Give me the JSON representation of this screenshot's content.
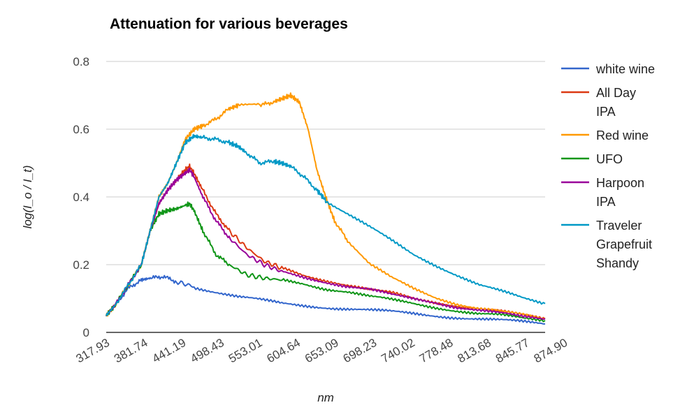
{
  "chart_data": {
    "type": "line",
    "title": "Attenuation for various beverages",
    "xlabel": "nm",
    "ylabel": "log(I_o / I_t)",
    "ylim": [
      0,
      0.8
    ],
    "yticks": [
      "0",
      "0.2",
      "0.4",
      "0.6",
      "0.8"
    ],
    "xticks": [
      "317.93",
      "381.74",
      "441.19",
      "498.43",
      "553.01",
      "604.64",
      "653.09",
      "698.23",
      "740.02",
      "778.48",
      "813.68",
      "845.77",
      "874.90"
    ],
    "grid": true,
    "legend_position": "right",
    "series": [
      {
        "name": "white wine",
        "color": "#3366cc",
        "points": [
          [
            0,
            0.05
          ],
          [
            0.02,
            0.08
          ],
          [
            0.05,
            0.13
          ],
          [
            0.08,
            0.155
          ],
          [
            0.1,
            0.16
          ],
          [
            0.13,
            0.165
          ],
          [
            0.16,
            0.15
          ],
          [
            0.2,
            0.135
          ],
          [
            0.25,
            0.12
          ],
          [
            0.3,
            0.105
          ],
          [
            0.35,
            0.095
          ],
          [
            0.4,
            0.085
          ],
          [
            0.45,
            0.08
          ],
          [
            0.5,
            0.075
          ],
          [
            0.55,
            0.07
          ],
          [
            0.6,
            0.065
          ],
          [
            0.65,
            0.06
          ],
          [
            0.7,
            0.055
          ],
          [
            0.75,
            0.05
          ],
          [
            0.8,
            0.045
          ],
          [
            0.85,
            0.04
          ],
          [
            0.9,
            0.035
          ],
          [
            0.95,
            0.03
          ],
          [
            1,
            0.025
          ]
        ]
      },
      {
        "name": "All Day IPA",
        "color": "#dc3912",
        "points": [
          [
            0,
            0.05
          ],
          [
            0.02,
            0.08
          ],
          [
            0.05,
            0.14
          ],
          [
            0.08,
            0.2
          ],
          [
            0.1,
            0.3
          ],
          [
            0.12,
            0.38
          ],
          [
            0.14,
            0.42
          ],
          [
            0.16,
            0.45
          ],
          [
            0.18,
            0.48
          ],
          [
            0.19,
            0.49
          ],
          [
            0.2,
            0.47
          ],
          [
            0.22,
            0.42
          ],
          [
            0.25,
            0.35
          ],
          [
            0.28,
            0.3
          ],
          [
            0.32,
            0.25
          ],
          [
            0.36,
            0.21
          ],
          [
            0.4,
            0.19
          ],
          [
            0.45,
            0.17
          ],
          [
            0.5,
            0.155
          ],
          [
            0.55,
            0.14
          ],
          [
            0.6,
            0.125
          ],
          [
            0.65,
            0.115
          ],
          [
            0.7,
            0.1
          ],
          [
            0.75,
            0.09
          ],
          [
            0.8,
            0.08
          ],
          [
            0.85,
            0.07
          ],
          [
            0.9,
            0.06
          ],
          [
            0.95,
            0.05
          ],
          [
            1,
            0.04
          ]
        ]
      },
      {
        "name": "Red wine",
        "color": "#ff9900",
        "points": [
          [
            0,
            0.05
          ],
          [
            0.02,
            0.08
          ],
          [
            0.05,
            0.14
          ],
          [
            0.08,
            0.2
          ],
          [
            0.1,
            0.3
          ],
          [
            0.12,
            0.4
          ],
          [
            0.14,
            0.44
          ],
          [
            0.16,
            0.5
          ],
          [
            0.18,
            0.57
          ],
          [
            0.2,
            0.6
          ],
          [
            0.22,
            0.61
          ],
          [
            0.25,
            0.63
          ],
          [
            0.28,
            0.66
          ],
          [
            0.3,
            0.67
          ],
          [
            0.35,
            0.67
          ],
          [
            0.38,
            0.68
          ],
          [
            0.4,
            0.69
          ],
          [
            0.42,
            0.7
          ],
          [
            0.44,
            0.68
          ],
          [
            0.46,
            0.6
          ],
          [
            0.48,
            0.48
          ],
          [
            0.5,
            0.4
          ],
          [
            0.52,
            0.33
          ],
          [
            0.55,
            0.27
          ],
          [
            0.6,
            0.2
          ],
          [
            0.65,
            0.16
          ],
          [
            0.7,
            0.13
          ],
          [
            0.75,
            0.105
          ],
          [
            0.8,
            0.085
          ],
          [
            0.85,
            0.07
          ],
          [
            0.9,
            0.06
          ],
          [
            0.95,
            0.05
          ],
          [
            1,
            0.04
          ]
        ]
      },
      {
        "name": "UFO",
        "color": "#109618",
        "points": [
          [
            0,
            0.05
          ],
          [
            0.02,
            0.08
          ],
          [
            0.05,
            0.14
          ],
          [
            0.08,
            0.2
          ],
          [
            0.1,
            0.3
          ],
          [
            0.12,
            0.35
          ],
          [
            0.14,
            0.36
          ],
          [
            0.16,
            0.365
          ],
          [
            0.18,
            0.375
          ],
          [
            0.19,
            0.38
          ],
          [
            0.2,
            0.36
          ],
          [
            0.22,
            0.3
          ],
          [
            0.25,
            0.23
          ],
          [
            0.28,
            0.2
          ],
          [
            0.32,
            0.17
          ],
          [
            0.36,
            0.16
          ],
          [
            0.4,
            0.155
          ],
          [
            0.45,
            0.145
          ],
          [
            0.5,
            0.13
          ],
          [
            0.55,
            0.12
          ],
          [
            0.6,
            0.105
          ],
          [
            0.65,
            0.095
          ],
          [
            0.7,
            0.085
          ],
          [
            0.75,
            0.075
          ],
          [
            0.8,
            0.065
          ],
          [
            0.85,
            0.055
          ],
          [
            0.9,
            0.05
          ],
          [
            0.95,
            0.04
          ],
          [
            1,
            0.035
          ]
        ]
      },
      {
        "name": "Harpoon IPA",
        "color": "#990099",
        "points": [
          [
            0,
            0.05
          ],
          [
            0.02,
            0.08
          ],
          [
            0.05,
            0.14
          ],
          [
            0.08,
            0.2
          ],
          [
            0.1,
            0.3
          ],
          [
            0.12,
            0.38
          ],
          [
            0.14,
            0.42
          ],
          [
            0.16,
            0.45
          ],
          [
            0.18,
            0.47
          ],
          [
            0.19,
            0.48
          ],
          [
            0.2,
            0.46
          ],
          [
            0.22,
            0.4
          ],
          [
            0.25,
            0.33
          ],
          [
            0.28,
            0.28
          ],
          [
            0.32,
            0.23
          ],
          [
            0.36,
            0.2
          ],
          [
            0.4,
            0.18
          ],
          [
            0.45,
            0.165
          ],
          [
            0.5,
            0.15
          ],
          [
            0.55,
            0.135
          ],
          [
            0.6,
            0.125
          ],
          [
            0.65,
            0.11
          ],
          [
            0.7,
            0.1
          ],
          [
            0.75,
            0.09
          ],
          [
            0.8,
            0.075
          ],
          [
            0.85,
            0.065
          ],
          [
            0.9,
            0.055
          ],
          [
            0.95,
            0.045
          ],
          [
            1,
            0.04
          ]
        ]
      },
      {
        "name": "Traveler Grapefruit Shandy",
        "color": "#0099c6",
        "points": [
          [
            0,
            0.05
          ],
          [
            0.02,
            0.08
          ],
          [
            0.05,
            0.14
          ],
          [
            0.08,
            0.2
          ],
          [
            0.1,
            0.3
          ],
          [
            0.12,
            0.4
          ],
          [
            0.14,
            0.44
          ],
          [
            0.16,
            0.5
          ],
          [
            0.18,
            0.56
          ],
          [
            0.2,
            0.58
          ],
          [
            0.22,
            0.575
          ],
          [
            0.25,
            0.57
          ],
          [
            0.28,
            0.56
          ],
          [
            0.3,
            0.55
          ],
          [
            0.32,
            0.53
          ],
          [
            0.35,
            0.5
          ],
          [
            0.38,
            0.505
          ],
          [
            0.4,
            0.5
          ],
          [
            0.42,
            0.49
          ],
          [
            0.45,
            0.46
          ],
          [
            0.48,
            0.42
          ],
          [
            0.5,
            0.39
          ],
          [
            0.55,
            0.35
          ],
          [
            0.6,
            0.31
          ],
          [
            0.65,
            0.27
          ],
          [
            0.7,
            0.23
          ],
          [
            0.75,
            0.2
          ],
          [
            0.8,
            0.17
          ],
          [
            0.85,
            0.14
          ],
          [
            0.9,
            0.12
          ],
          [
            0.95,
            0.1
          ],
          [
            1,
            0.085
          ]
        ]
      }
    ]
  }
}
